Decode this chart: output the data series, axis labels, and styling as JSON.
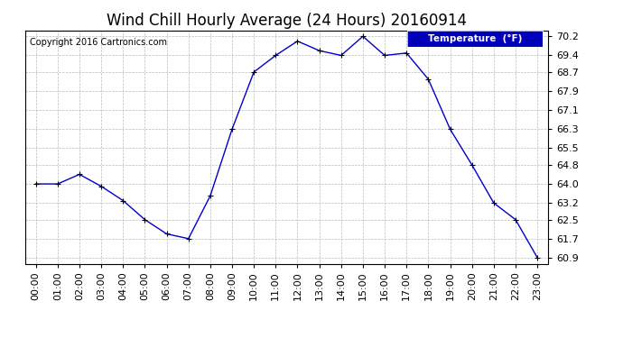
{
  "title": "Wind Chill Hourly Average (24 Hours) 20160914",
  "copyright_text": "Copyright 2016 Cartronics.com",
  "legend_label": "Temperature  (°F)",
  "hours": [
    0,
    1,
    2,
    3,
    4,
    5,
    6,
    7,
    8,
    9,
    10,
    11,
    12,
    13,
    14,
    15,
    16,
    17,
    18,
    19,
    20,
    21,
    22,
    23
  ],
  "values": [
    64.0,
    64.0,
    64.4,
    63.9,
    63.3,
    62.5,
    61.9,
    61.7,
    63.5,
    66.3,
    68.7,
    69.4,
    70.0,
    69.6,
    69.4,
    70.2,
    69.4,
    69.5,
    68.4,
    66.3,
    64.8,
    63.2,
    62.5,
    60.9
  ],
  "ylim": [
    60.65,
    70.45
  ],
  "yticks": [
    60.9,
    61.7,
    62.5,
    63.2,
    64.0,
    64.8,
    65.5,
    66.3,
    67.1,
    67.9,
    68.7,
    69.4,
    70.2
  ],
  "line_color": "#0000CC",
  "marker": "+",
  "background_color": "#ffffff",
  "grid_color": "#aaaaaa",
  "title_fontsize": 12,
  "tick_fontsize": 8,
  "legend_bg": "#0000BB",
  "legend_fg": "#ffffff"
}
